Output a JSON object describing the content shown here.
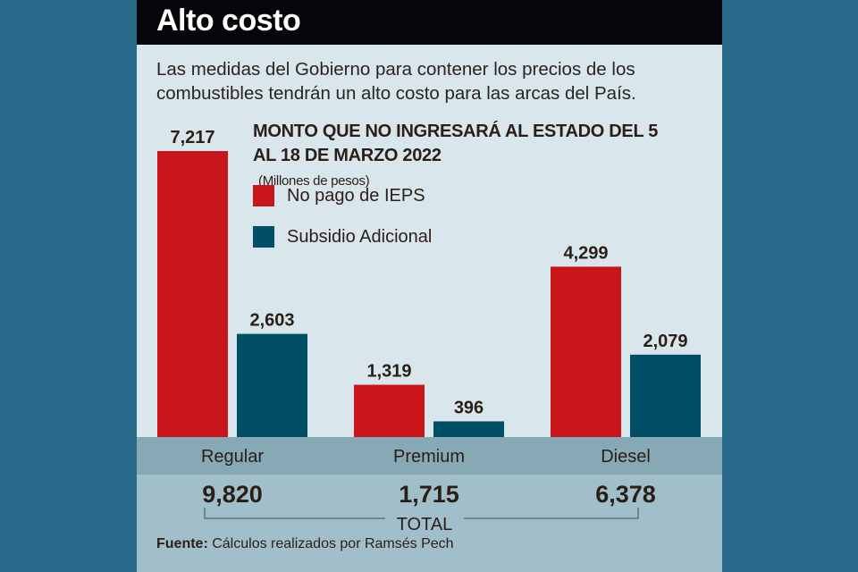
{
  "header": {
    "title": "Alto costo"
  },
  "subtitle": "Las medidas del Gobierno para contener los precios de los combustibles tendrán un alto costo para las arcas del País.",
  "source": {
    "label": "Fuente:",
    "text": " Cálculos realizados por Ramsés Pech"
  },
  "colors": {
    "ieps": "#c8151a",
    "subsidio": "#004f66"
  },
  "chart_data": {
    "type": "bar",
    "title": "MONTO QUE NO INGRESARÁ AL ESTADO DEL 5 AL 18 DE MARZO 2022",
    "units": "(Millones de pesos)",
    "categories": [
      "Regular",
      "Premium",
      "Diesel"
    ],
    "series": [
      {
        "name": "No pago de IEPS",
        "values": [
          7217,
          1319,
          4299
        ],
        "labels": [
          "7,217",
          "1,319",
          "4,299"
        ]
      },
      {
        "name": "Subsidio Adicional",
        "values": [
          2603,
          396,
          2079
        ],
        "labels": [
          "2,603",
          "396",
          "2,079"
        ]
      }
    ],
    "totals": [
      "9,820",
      "1,715",
      "6,378"
    ],
    "total_label": "TOTAL",
    "legend": "top-center",
    "grid": false
  }
}
